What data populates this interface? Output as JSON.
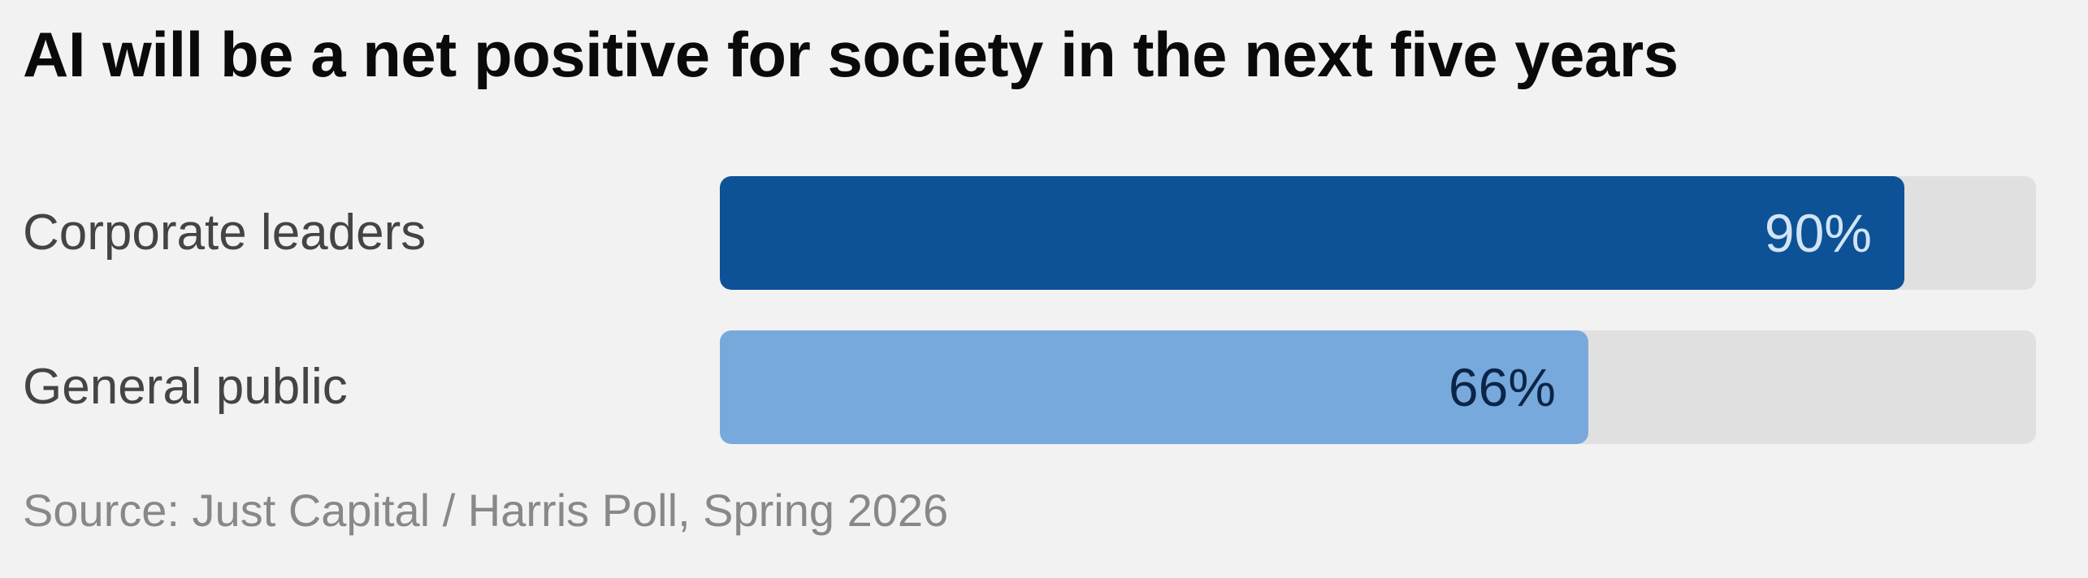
{
  "title": "AI will be a net positive for society in the next five years",
  "source": "Source: Just Capital / Harris Poll, Spring 2026",
  "chart_data": {
    "type": "bar",
    "orientation": "horizontal",
    "categories": [
      "Corporate leaders",
      "General public"
    ],
    "values": [
      90,
      66
    ],
    "value_labels": [
      "90%",
      "66%"
    ],
    "xlim": [
      0,
      100
    ],
    "unit": "%",
    "grid": false,
    "legend": "none",
    "colors": {
      "bar_fills": [
        "#0d5296",
        "#78a9dc"
      ],
      "value_label_colors": [
        "#d3e4f7",
        "#0b2548"
      ],
      "track": "#e0e0e0"
    }
  }
}
